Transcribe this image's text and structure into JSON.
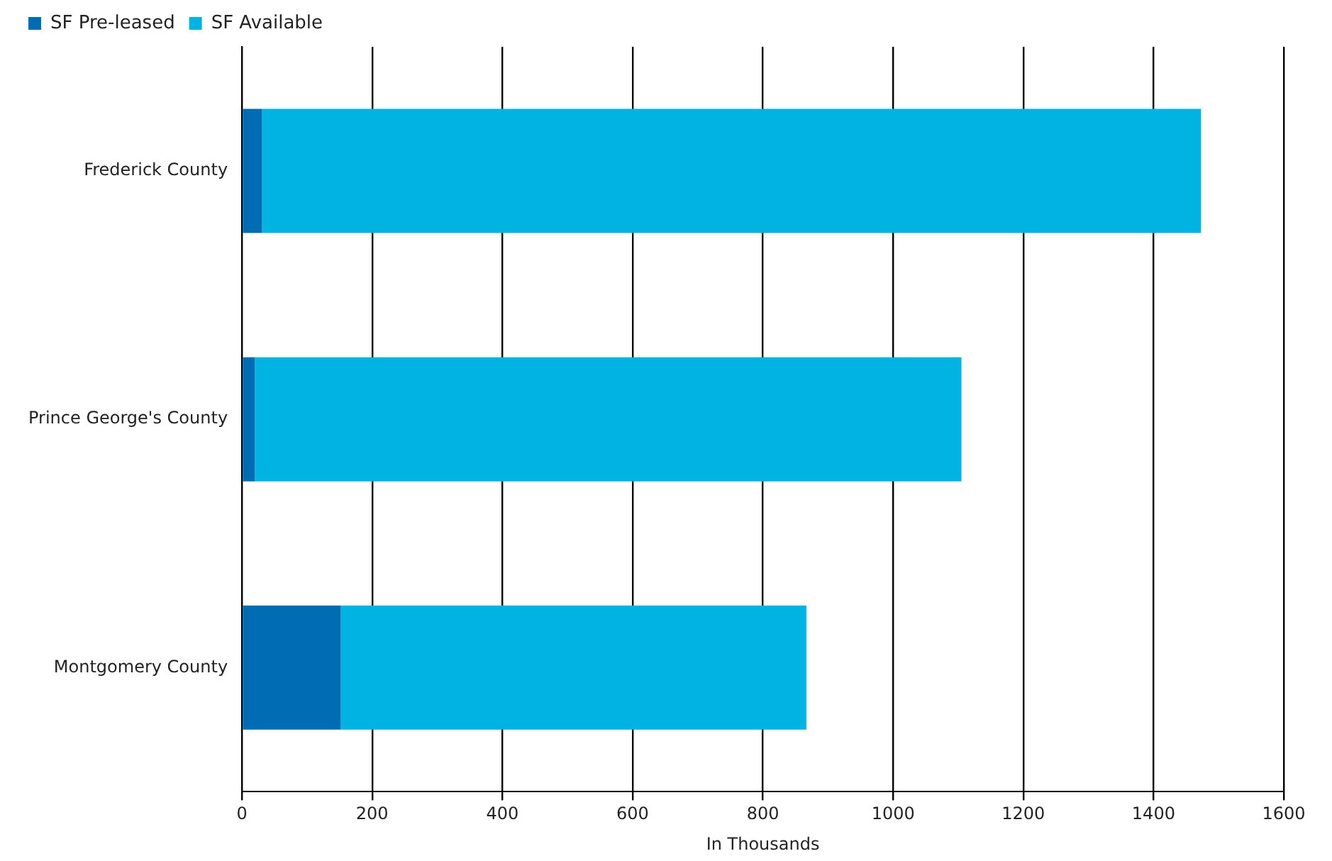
{
  "chart_data": {
    "type": "bar",
    "orientation": "horizontal",
    "stacked": true,
    "categories": [
      "Frederick County",
      "Prince George's County",
      "Montgomery County"
    ],
    "series": [
      {
        "name": "SF Pre-leased",
        "color": "#006cb4",
        "values": [
          31,
          20,
          152
        ]
      },
      {
        "name": "SF Available",
        "color": "#00b3e3",
        "values": [
          1442,
          1085,
          715
        ]
      }
    ],
    "xlabel": "In Thousands",
    "xlim": [
      0,
      1600
    ],
    "xticks": [
      0,
      200,
      400,
      600,
      800,
      1000,
      1200,
      1400,
      1600
    ],
    "grid": "x",
    "legend": "top left"
  }
}
